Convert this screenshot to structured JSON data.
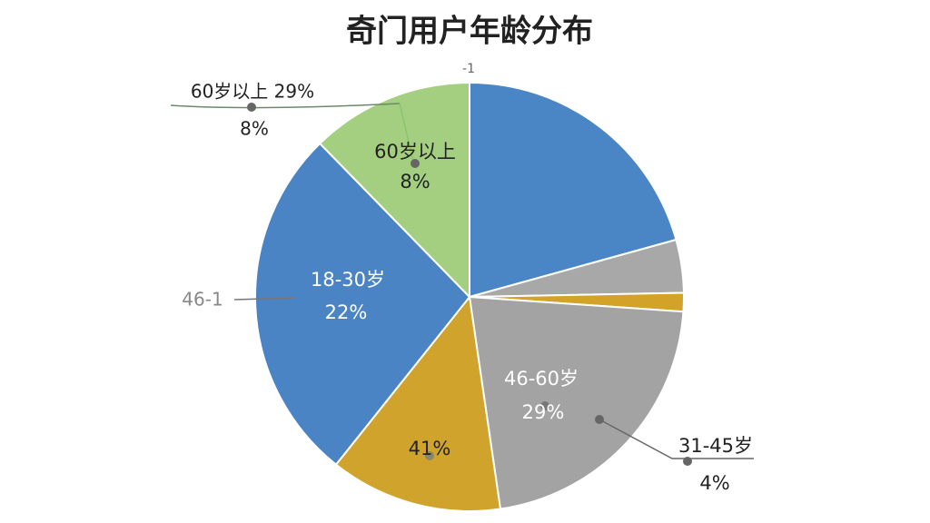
{
  "chart_data": {
    "type": "pie",
    "title": "奇门用户年龄分布",
    "categories": [
      null,
      null,
      null,
      null,
      null,
      null,
      null
    ],
    "values": [
      20.7,
      4,
      1.4,
      21.6,
      13,
      27,
      12.3
    ],
    "colors": [
      "#4a86c5",
      "#a8a8a8",
      "#d2a328",
      "#a3a3a3",
      "#d0a32c",
      "#4a84c4",
      "#a4cf80"
    ],
    "annotations": [
      "-1",
      "60岁以上 29%",
      "8%",
      "60岁以上",
      "8%",
      "46-1",
      "18-30岁",
      "22%",
      "46-60岁",
      "29%",
      "41%",
      "31-45岁",
      "4%"
    ]
  }
}
